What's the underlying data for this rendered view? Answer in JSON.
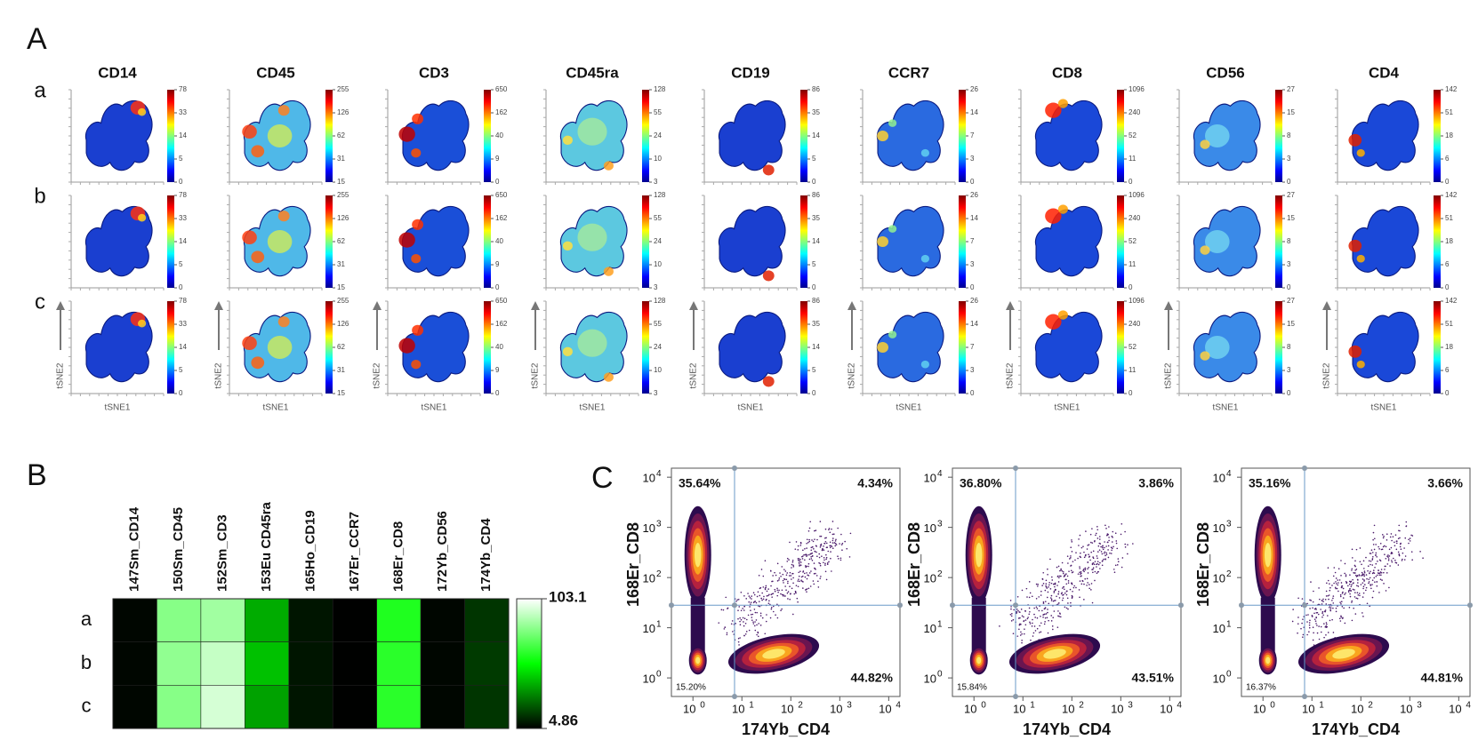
{
  "panel_a": {
    "label": "A",
    "rows": [
      "a",
      "b",
      "c"
    ],
    "x_label": "tSNE1",
    "y_label": "tSNE2",
    "markers": [
      {
        "name": "CD14",
        "ticks": [
          0,
          5,
          14,
          33,
          78
        ]
      },
      {
        "name": "CD45",
        "ticks": [
          15,
          31,
          62,
          126,
          255
        ]
      },
      {
        "name": "CD3",
        "ticks": [
          0,
          9,
          40,
          162,
          650
        ]
      },
      {
        "name": "CD45ra",
        "ticks": [
          3,
          10,
          24,
          55,
          128
        ]
      },
      {
        "name": "CD19",
        "ticks": [
          0,
          5,
          14,
          35,
          86
        ]
      },
      {
        "name": "CCR7",
        "ticks": [
          0,
          3,
          7,
          14,
          26
        ]
      },
      {
        "name": "CD8",
        "ticks": [
          0,
          11,
          52,
          240,
          1096
        ]
      },
      {
        "name": "CD56",
        "ticks": [
          0,
          3,
          8,
          15,
          27
        ]
      },
      {
        "name": "CD4",
        "ticks": [
          0,
          6,
          18,
          51,
          142
        ]
      }
    ]
  },
  "panel_b": {
    "label": "B",
    "columns": [
      "147Sm_CD14",
      "150Sm_CD45",
      "152Sm_CD3",
      "153Eu CD45ra",
      "165Ho_CD19",
      "167Er_CCR7",
      "168Er_CD8",
      "172Yb_CD56",
      "174Yb_CD4"
    ],
    "rows": [
      "a",
      "b",
      "c"
    ],
    "values": [
      [
        6,
        80,
        85,
        38,
        9,
        5,
        60,
        6,
        15
      ],
      [
        6,
        82,
        92,
        42,
        9,
        5,
        62,
        6,
        16
      ],
      [
        6,
        80,
        95,
        36,
        9,
        5,
        62,
        6,
        15
      ]
    ],
    "colorbar": {
      "max": 103.1,
      "min": 4.86
    }
  },
  "panel_c": {
    "label": "C",
    "x_label": "174Yb_CD4",
    "y_label": "168Er_CD8",
    "tick_base": 10,
    "tick_exponents": [
      0,
      1,
      2,
      3,
      4
    ],
    "plots": [
      {
        "upper_left": "35.64%",
        "upper_right": "4.34%",
        "lower_left": "15.20%",
        "lower_right": "44.82%"
      },
      {
        "upper_left": "36.80%",
        "upper_right": "3.86%",
        "lower_left": "15.84%",
        "lower_right": "43.51%"
      },
      {
        "upper_left": "35.16%",
        "upper_right": "3.66%",
        "lower_left": "16.37%",
        "lower_right": "44.81%"
      }
    ]
  }
}
